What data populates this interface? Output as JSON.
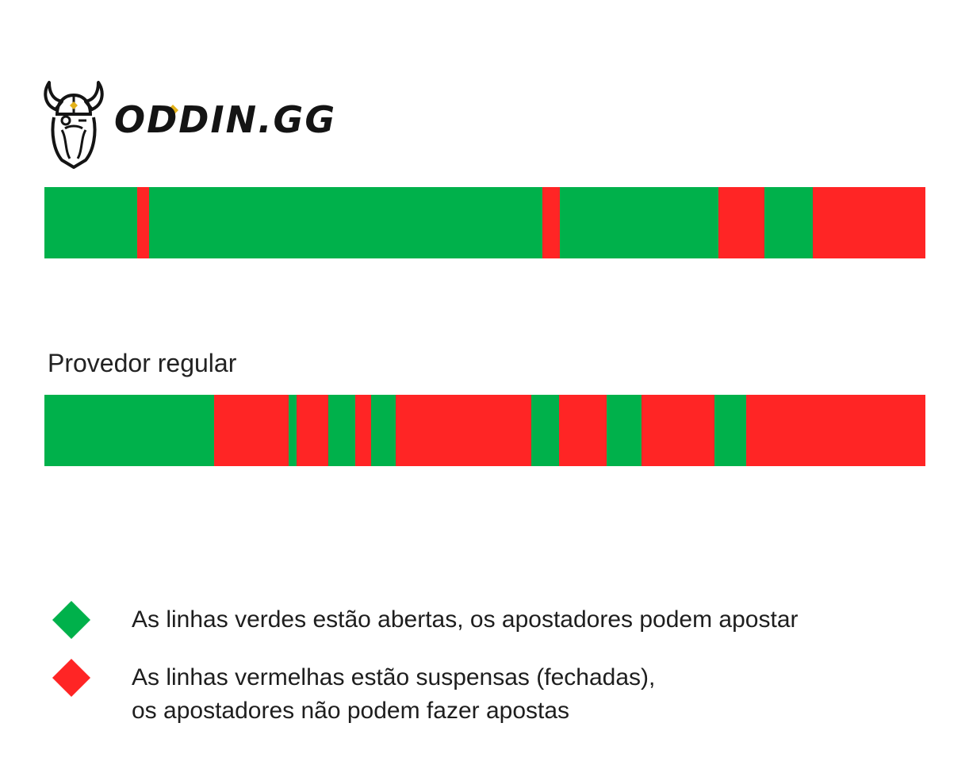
{
  "logo": {
    "text": "ODDIN.GG",
    "icon": "viking-head-icon"
  },
  "colors": {
    "open": "#00b14b",
    "suspended": "#ff2525",
    "logo_accent": "#e3b21a"
  },
  "timelines": [
    {
      "id": "oddin",
      "label": "",
      "segments": [
        {
          "state": "open",
          "start": 0,
          "end": 10.5
        },
        {
          "state": "suspended",
          "start": 10.5,
          "end": 11.9
        },
        {
          "state": "open",
          "start": 11.9,
          "end": 56.5
        },
        {
          "state": "suspended",
          "start": 56.5,
          "end": 58.5
        },
        {
          "state": "open",
          "start": 58.5,
          "end": 76.5
        },
        {
          "state": "suspended",
          "start": 76.5,
          "end": 81.7
        },
        {
          "state": "open",
          "start": 81.7,
          "end": 87.2
        },
        {
          "state": "suspended",
          "start": 87.2,
          "end": 100
        }
      ]
    },
    {
      "id": "regular",
      "label": "Provedor regular",
      "segments": [
        {
          "state": "open",
          "start": 0,
          "end": 19.3
        },
        {
          "state": "suspended",
          "start": 19.3,
          "end": 27.7
        },
        {
          "state": "open",
          "start": 27.7,
          "end": 28.6
        },
        {
          "state": "suspended",
          "start": 28.6,
          "end": 32.2
        },
        {
          "state": "open",
          "start": 32.2,
          "end": 35.3
        },
        {
          "state": "suspended",
          "start": 35.3,
          "end": 37.1
        },
        {
          "state": "open",
          "start": 37.1,
          "end": 39.9
        },
        {
          "state": "suspended",
          "start": 39.9,
          "end": 55.3
        },
        {
          "state": "open",
          "start": 55.3,
          "end": 58.4
        },
        {
          "state": "suspended",
          "start": 58.4,
          "end": 63.8
        },
        {
          "state": "open",
          "start": 63.8,
          "end": 67.8
        },
        {
          "state": "suspended",
          "start": 67.8,
          "end": 76.1
        },
        {
          "state": "open",
          "start": 76.1,
          "end": 79.7
        },
        {
          "state": "suspended",
          "start": 79.7,
          "end": 100
        }
      ]
    }
  ],
  "legend": [
    {
      "state": "open",
      "lines": [
        "As linhas verdes estão abertas, os apostadores podem apostar"
      ]
    },
    {
      "state": "suspended",
      "lines": [
        "As linhas vermelhas estão suspensas (fechadas),",
        "os apostadores não podem fazer apostas"
      ]
    }
  ]
}
